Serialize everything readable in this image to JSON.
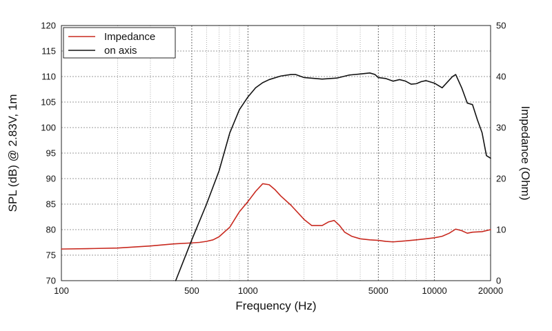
{
  "chart_data": {
    "type": "line",
    "xscale": "log",
    "xlabel": "Frequency (Hz)",
    "ylabel_left": "SPL (dB) @ 2.83V, 1m",
    "ylabel_right": "Impedance (Ohm)",
    "xlim": [
      100,
      20000
    ],
    "ylim_left": [
      70,
      120
    ],
    "ylim_right": [
      0,
      50
    ],
    "x_ticks": [
      100,
      500,
      1000,
      5000,
      10000,
      20000
    ],
    "x_tick_labels": [
      "100",
      "500",
      "1000",
      "5000",
      "10000",
      "20000"
    ],
    "y_left_ticks": [
      70,
      75,
      80,
      85,
      90,
      95,
      100,
      105,
      110,
      115,
      120
    ],
    "y_left_tick_labels": [
      "70",
      "75",
      "80",
      "85",
      "90",
      "95",
      "100",
      "105",
      "110",
      "115",
      "120"
    ],
    "y_right_ticks": [
      0,
      10,
      20,
      30,
      40,
      50
    ],
    "y_right_tick_labels": [
      "0",
      "10",
      "20",
      "30",
      "40",
      "50"
    ],
    "grid": true,
    "legend_position": "top-left",
    "series": [
      {
        "name": "Impedance",
        "axis": "right",
        "color": "#c8281e",
        "x": [
          100,
          150,
          200,
          300,
          400,
          500,
          550,
          600,
          650,
          700,
          800,
          900,
          1000,
          1100,
          1200,
          1300,
          1400,
          1500,
          1700,
          2000,
          2200,
          2500,
          2700,
          2900,
          3100,
          3300,
          3600,
          4000,
          4500,
          5000,
          5500,
          6000,
          7000,
          8000,
          9000,
          10000,
          11000,
          12000,
          13000,
          14000,
          15000,
          16000,
          18000,
          20000
        ],
        "y": [
          6.2,
          6.3,
          6.4,
          6.8,
          7.2,
          7.4,
          7.5,
          7.7,
          8.0,
          8.6,
          10.5,
          13.5,
          15.5,
          17.5,
          19.0,
          18.8,
          17.8,
          16.6,
          14.8,
          12.0,
          10.8,
          10.8,
          11.5,
          11.8,
          10.8,
          9.5,
          8.7,
          8.2,
          8.0,
          7.9,
          7.7,
          7.6,
          7.8,
          8.0,
          8.2,
          8.4,
          8.7,
          9.3,
          10.1,
          9.8,
          9.3,
          9.5,
          9.6,
          10.0
        ]
      },
      {
        "name": "on axis",
        "axis": "left",
        "color": "#111111",
        "x": [
          410,
          500,
          600,
          700,
          800,
          900,
          1000,
          1100,
          1200,
          1300,
          1500,
          1700,
          1800,
          2000,
          2500,
          3000,
          3500,
          4000,
          4500,
          4800,
          5000,
          5500,
          6000,
          6500,
          7000,
          7500,
          8000,
          8500,
          9000,
          10000,
          11000,
          12000,
          12500,
          13000,
          14000,
          15000,
          16000,
          17000,
          18000,
          19000,
          20000
        ],
        "y": [
          70,
          78,
          85,
          91.5,
          99,
          103.5,
          106,
          107.8,
          108.8,
          109.4,
          110.1,
          110.4,
          110.4,
          109.8,
          109.5,
          109.7,
          110.3,
          110.5,
          110.7,
          110.4,
          109.8,
          109.6,
          109.1,
          109.4,
          109.1,
          108.5,
          108.6,
          109.0,
          109.2,
          108.7,
          107.8,
          109.3,
          110.0,
          110.4,
          107.8,
          104.8,
          104.5,
          101.5,
          99.0,
          94.5,
          94.0
        ]
      }
    ]
  }
}
